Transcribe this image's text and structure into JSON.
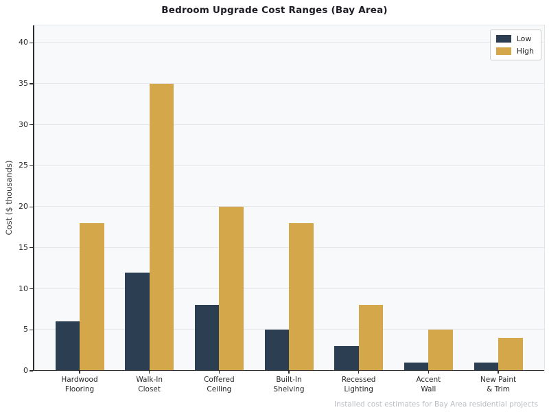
{
  "title": "Bedroom Upgrade Cost Ranges (Bay Area)",
  "footer": "Installed cost estimates for Bay Area residential projects",
  "chart_data": {
    "type": "bar",
    "title": "Bedroom Upgrade Cost Ranges (Bay Area)",
    "categories": [
      "Hardwood\nFlooring",
      "Walk-In\nCloset",
      "Coffered\nCeiling",
      "Built-In\nShelving",
      "Recessed\nLighting",
      "Accent\nWall",
      "New Paint\n& Trim"
    ],
    "series": [
      {
        "name": "Low",
        "color": "#2c3e52",
        "values": [
          6,
          12,
          8,
          5,
          3,
          1,
          1
        ]
      },
      {
        "name": "High",
        "color": "#d3a74a",
        "values": [
          18,
          35,
          20,
          18,
          8,
          5,
          4
        ]
      }
    ],
    "xlabel": "",
    "ylabel": "Cost ($ thousands)",
    "yticks": [
      0,
      5,
      10,
      15,
      20,
      25,
      30,
      35,
      40
    ],
    "ylim": [
      0,
      42.2
    ],
    "grid": true,
    "legend_position": "upper right",
    "plot_background": "#f8f9fb",
    "gridline_color": "#e5e7eb",
    "annotation": "Installed cost estimates for Bay Area residential projects"
  }
}
